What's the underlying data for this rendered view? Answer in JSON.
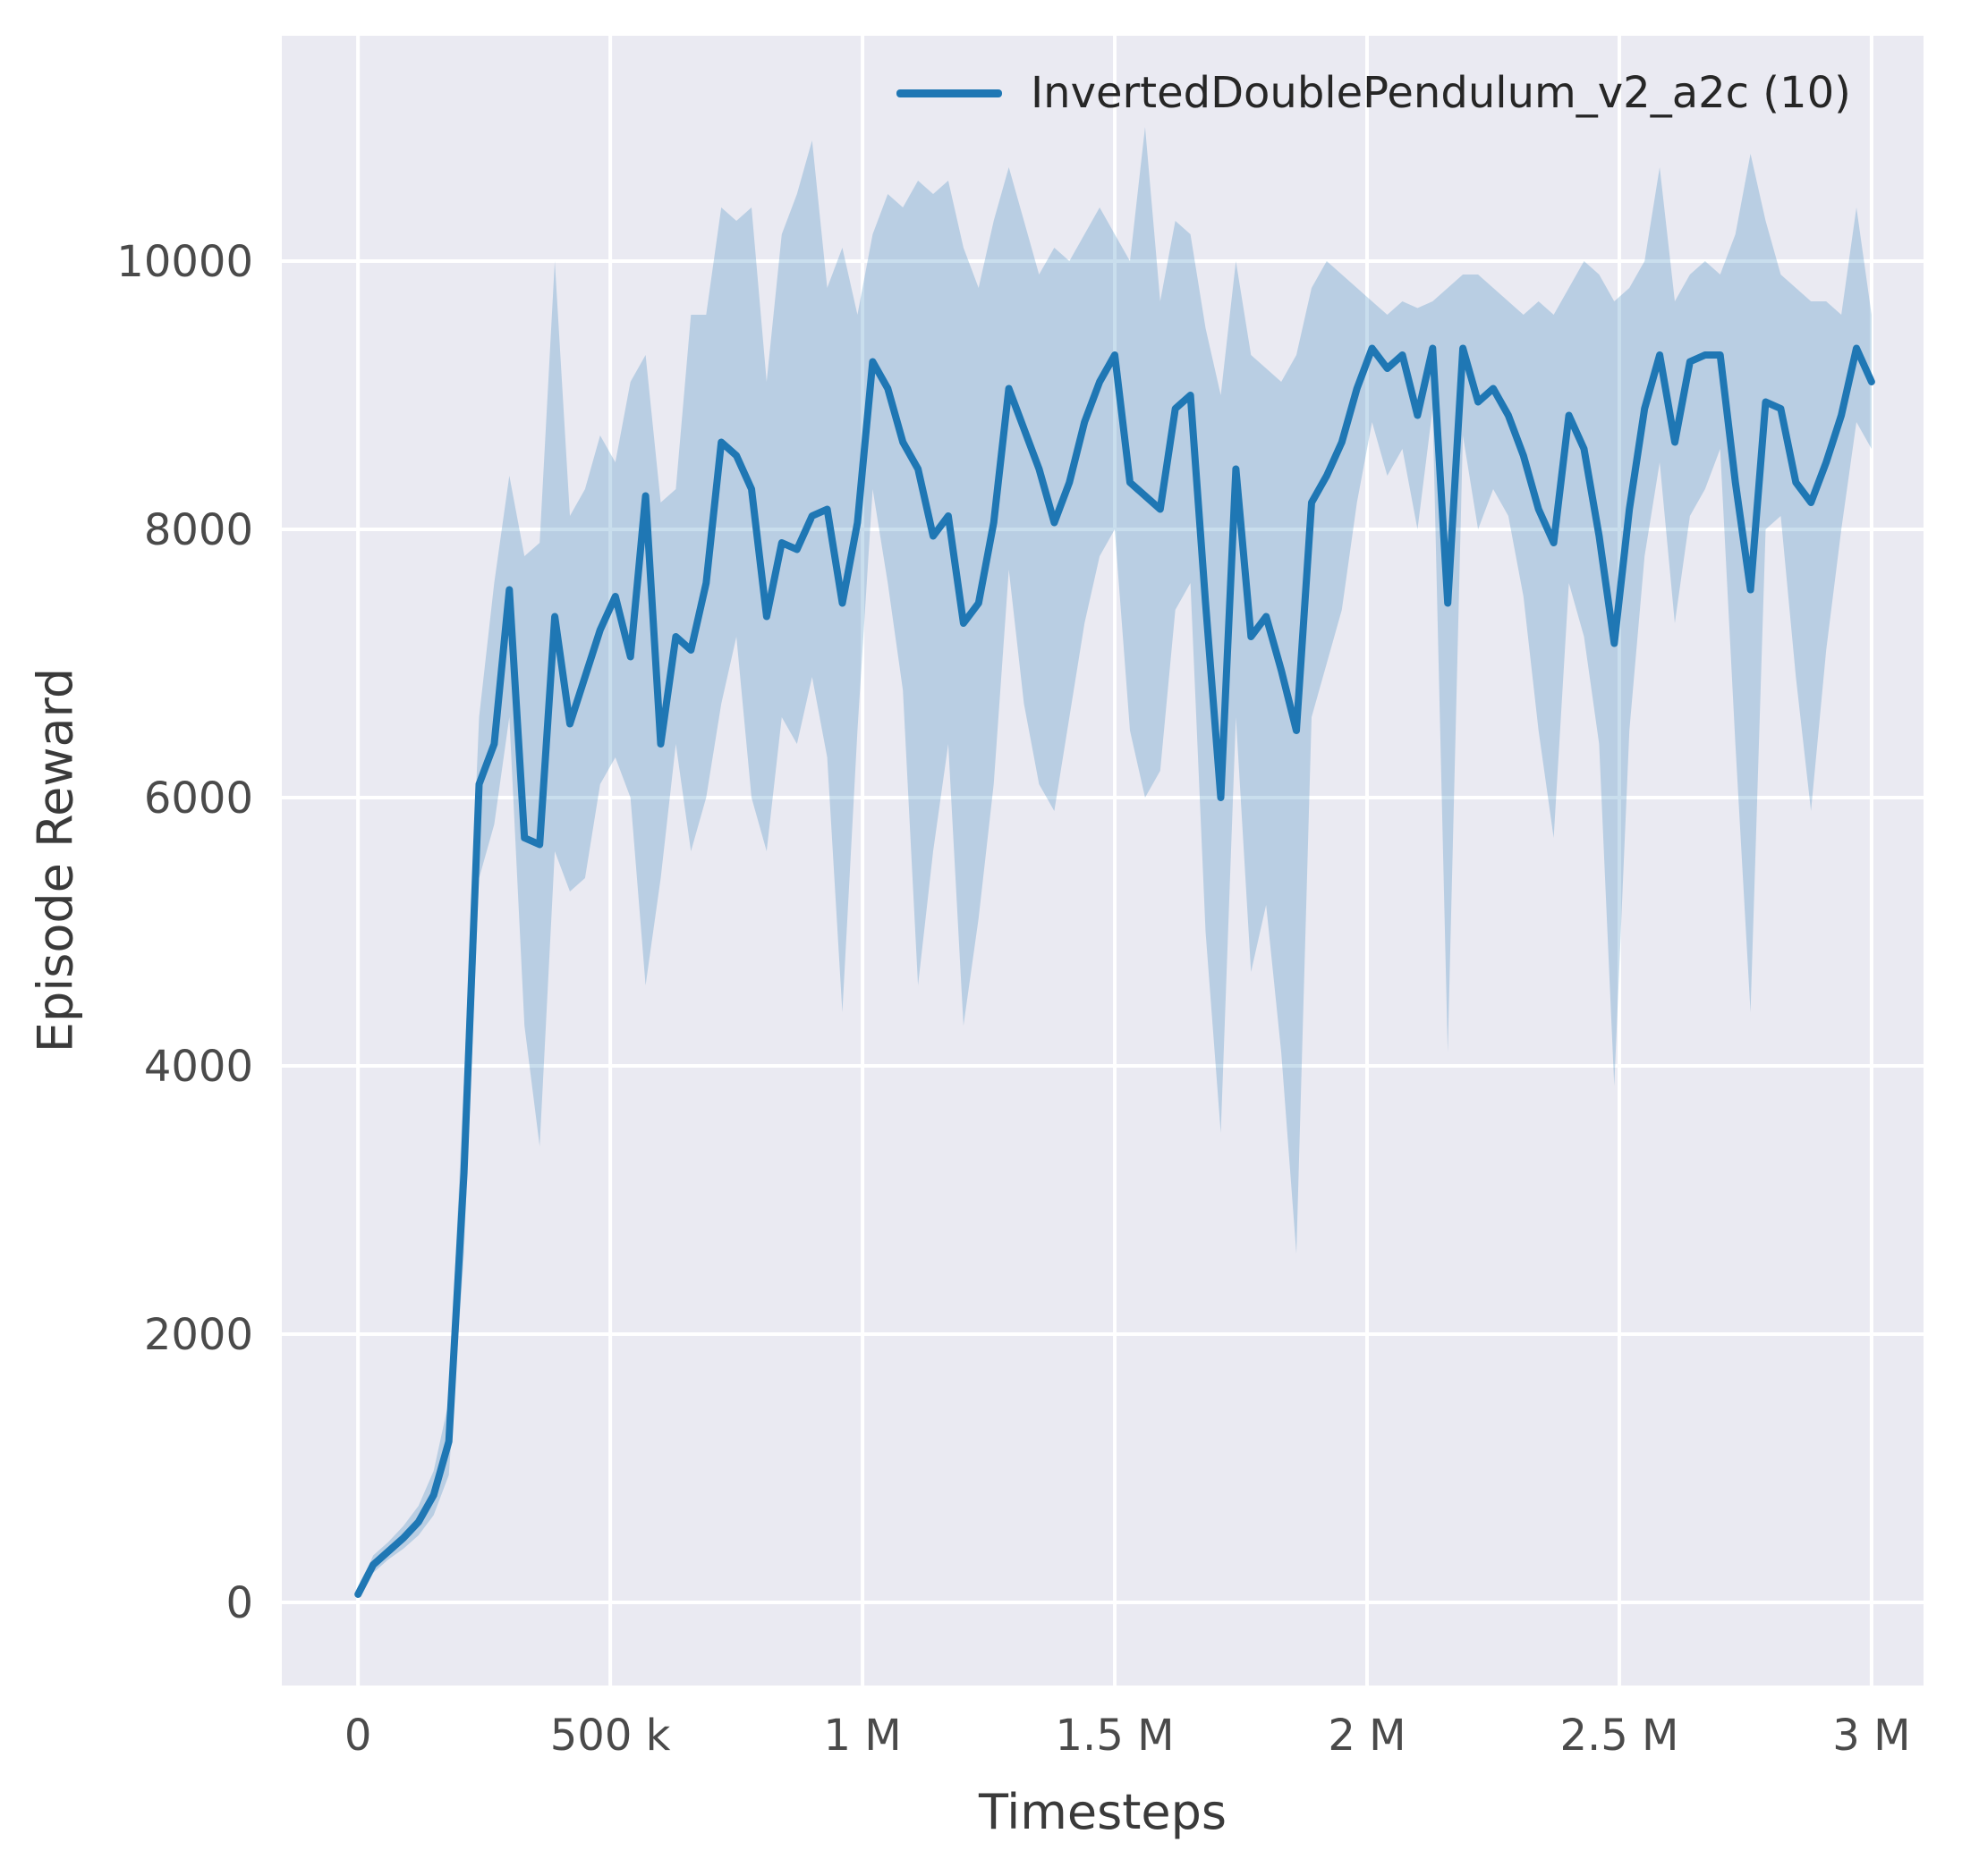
{
  "figure": {
    "background": "#ffffff",
    "axes_background": "#eaeaf2",
    "grid_color": "#ffffff",
    "tick_label_color": "#4a4a4a",
    "axis_label_color": "#3a3a3a"
  },
  "chart_data": {
    "type": "line",
    "title": "",
    "xlabel": "Timesteps",
    "ylabel": "Episode Reward",
    "legend": {
      "label": "InvertedDoublePendulum_v2_a2c (10)",
      "position": "upper right"
    },
    "line_color": "#1f77b4",
    "band_color": "#1f77b4",
    "band_opacity": 0.24,
    "grid": true,
    "xlim": [
      -151000,
      3103000
    ],
    "ylim": [
      -620,
      11680
    ],
    "x_ticks": [
      0,
      500000,
      1000000,
      1500000,
      2000000,
      2500000,
      3000000
    ],
    "x_tick_labels": [
      "0",
      "500 k",
      "1 M",
      "1.5 M",
      "2 M",
      "2.5 M",
      "3 M"
    ],
    "y_ticks": [
      0,
      2000,
      4000,
      6000,
      8000,
      10000
    ],
    "y_tick_labels": [
      "0",
      "2000",
      "4000",
      "6000",
      "8000",
      "10000"
    ],
    "series": [
      {
        "name": "InvertedDoublePendulum_v2_a2c (10)",
        "x": [
          0,
          30000,
          60000,
          90000,
          120000,
          150000,
          180000,
          210000,
          240000,
          270000,
          300000,
          330000,
          360000,
          390000,
          420000,
          450000,
          480000,
          510000,
          540000,
          570000,
          600000,
          630000,
          660000,
          690000,
          720000,
          750000,
          780000,
          810000,
          840000,
          870000,
          900000,
          930000,
          960000,
          990000,
          1020000,
          1050000,
          1080000,
          1110000,
          1140000,
          1170000,
          1200000,
          1230000,
          1260000,
          1290000,
          1320000,
          1350000,
          1380000,
          1410000,
          1440000,
          1470000,
          1500000,
          1530000,
          1560000,
          1590000,
          1620000,
          1650000,
          1680000,
          1710000,
          1740000,
          1770000,
          1800000,
          1830000,
          1860000,
          1890000,
          1920000,
          1950000,
          1980000,
          2010000,
          2040000,
          2070000,
          2100000,
          2130000,
          2160000,
          2190000,
          2220000,
          2250000,
          2280000,
          2310000,
          2340000,
          2370000,
          2400000,
          2430000,
          2460000,
          2490000,
          2520000,
          2550000,
          2580000,
          2610000,
          2640000,
          2670000,
          2700000,
          2730000,
          2760000,
          2790000,
          2820000,
          2850000,
          2880000,
          2910000,
          2940000,
          2970000,
          3000000
        ],
        "mean": [
          60,
          280,
          380,
          480,
          600,
          800,
          1200,
          3200,
          6100,
          6400,
          7550,
          5700,
          5650,
          7350,
          6550,
          6900,
          7250,
          7500,
          7050,
          8250,
          6400,
          7200,
          7100,
          7600,
          8650,
          8550,
          8300,
          7350,
          7900,
          7850,
          8100,
          8150,
          7450,
          8050,
          9250,
          9050,
          8650,
          8450,
          7950,
          8100,
          7300,
          7450,
          8050,
          9050,
          8750,
          8450,
          8050,
          8350,
          8800,
          9100,
          9300,
          8350,
          8250,
          8150,
          8900,
          9000,
          7450,
          6000,
          8450,
          7200,
          7350,
          6950,
          6500,
          8200,
          8400,
          8650,
          9050,
          9350,
          9200,
          9300,
          8850,
          9350,
          7450,
          9350,
          8950,
          9050,
          8850,
          8550,
          8150,
          7900,
          8850,
          8600,
          7950,
          7150,
          8150,
          8900,
          9300,
          8650,
          9250,
          9300,
          9300,
          8350,
          7550,
          8950,
          8900,
          8350,
          8200,
          8500,
          8850,
          9350,
          9100
        ],
        "lower": [
          40,
          220,
          320,
          400,
          500,
          650,
          950,
          2600,
          5400,
          5800,
          6600,
          4300,
          3400,
          5600,
          5300,
          5400,
          6100,
          6300,
          6000,
          4600,
          5400,
          6400,
          5600,
          6000,
          6700,
          7200,
          6000,
          5600,
          6600,
          6400,
          6900,
          6300,
          4400,
          6500,
          8300,
          7600,
          6800,
          4600,
          5600,
          6400,
          4300,
          5100,
          6100,
          7700,
          6700,
          6100,
          5900,
          6600,
          7300,
          7800,
          8000,
          6500,
          6000,
          6200,
          7400,
          7600,
          5000,
          3500,
          6600,
          4700,
          5200,
          4100,
          2600,
          6600,
          7000,
          7400,
          8200,
          8800,
          8400,
          8600,
          8000,
          8900,
          4100,
          8700,
          8000,
          8300,
          8100,
          7500,
          6500,
          5700,
          7600,
          7200,
          6400,
          3850,
          6500,
          7800,
          8500,
          7300,
          8100,
          8300,
          8600,
          6400,
          4400,
          8000,
          8100,
          6900,
          5900,
          7100,
          8000,
          8800,
          8600
        ],
        "upper": [
          90,
          350,
          450,
          570,
          720,
          980,
          1500,
          3900,
          6600,
          7600,
          8400,
          7800,
          7900,
          10000,
          8100,
          8300,
          8700,
          8500,
          9100,
          9300,
          8200,
          8300,
          9600,
          9600,
          10400,
          10300,
          10400,
          9100,
          10200,
          10500,
          10900,
          9800,
          10100,
          9600,
          10200,
          10500,
          10400,
          10600,
          10500,
          10600,
          10100,
          9800,
          10300,
          10700,
          10300,
          9900,
          10100,
          10000,
          10200,
          10400,
          10200,
          10000,
          11000,
          9700,
          10300,
          10200,
          9500,
          9000,
          10000,
          9300,
          9200,
          9100,
          9300,
          9800,
          10000,
          9900,
          9800,
          9700,
          9600,
          9700,
          9650,
          9700,
          9800,
          9900,
          9900,
          9800,
          9700,
          9600,
          9700,
          9600,
          9800,
          10000,
          9900,
          9700,
          9800,
          10000,
          10700,
          9700,
          9900,
          10000,
          9900,
          10200,
          10800,
          10300,
          9900,
          9800,
          9700,
          9700,
          9600,
          10400,
          9600
        ]
      }
    ]
  }
}
